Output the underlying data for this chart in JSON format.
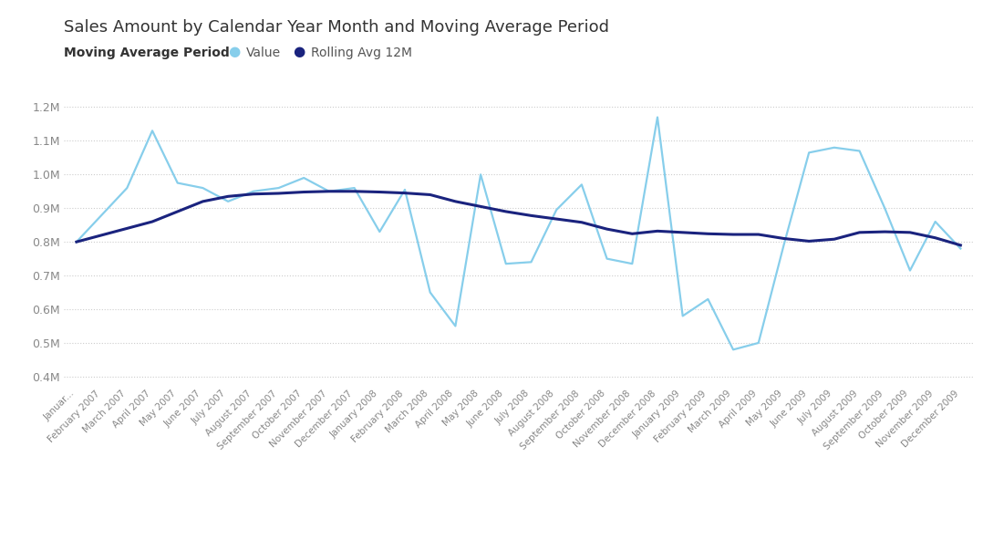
{
  "title": "Sales Amount by Calendar Year Month and Moving Average Period",
  "legend_prefix": "Moving Average Period",
  "series_value_label": "Value",
  "series_avg_label": "Rolling Avg 12M",
  "value_color": "#87CEEB",
  "avg_color": "#1a237e",
  "background_color": "#ffffff",
  "ylim": [
    0.375,
    1.265
  ],
  "yticks": [
    0.4,
    0.5,
    0.6,
    0.7,
    0.8,
    0.9,
    1.0,
    1.1,
    1.2
  ],
  "ytick_labels": [
    "0.4M",
    "0.5M",
    "0.6M",
    "0.7M",
    "0.8M",
    "0.9M",
    "1.0M",
    "1.1M",
    "1.2M"
  ],
  "months": [
    "Januar...",
    "February 2007",
    "March 2007",
    "April 2007",
    "May 2007",
    "June 2007",
    "July 2007",
    "August 2007",
    "September 2007",
    "October 2007",
    "November 2007",
    "December 2007",
    "January 2008",
    "February 2008",
    "March 2008",
    "April 2008",
    "May 2008",
    "June 2008",
    "July 2008",
    "August 2008",
    "September 2008",
    "October 2008",
    "November 2008",
    "December 2008",
    "January 2009",
    "February 2009",
    "March 2009",
    "April 2009",
    "May 2009",
    "June 2009",
    "July 2009",
    "August 2009",
    "September 2009",
    "October 2009",
    "November 2009",
    "December 2009"
  ],
  "values": [
    0.8,
    0.88,
    0.96,
    1.13,
    0.975,
    0.96,
    0.92,
    0.95,
    0.96,
    0.99,
    0.95,
    0.96,
    0.83,
    0.955,
    0.65,
    0.55,
    1.0,
    0.735,
    0.74,
    0.895,
    0.97,
    0.75,
    0.735,
    1.17,
    0.58,
    0.63,
    0.48,
    0.5,
    0.79,
    1.065,
    1.08,
    1.07,
    0.9,
    0.715,
    0.86,
    0.78
  ],
  "rolling_avg": [
    0.8,
    0.82,
    0.84,
    0.86,
    0.89,
    0.92,
    0.935,
    0.942,
    0.944,
    0.948,
    0.95,
    0.95,
    0.948,
    0.945,
    0.94,
    0.92,
    0.905,
    0.89,
    0.878,
    0.868,
    0.858,
    0.838,
    0.824,
    0.832,
    0.828,
    0.824,
    0.822,
    0.822,
    0.81,
    0.802,
    0.808,
    0.828,
    0.83,
    0.828,
    0.812,
    0.79
  ],
  "grid_color": "#cccccc",
  "tick_color": "#888888",
  "title_fontsize": 13,
  "label_fontsize": 9,
  "legend_fontsize": 10,
  "title_color": "#333333",
  "legend_text_color": "#555555"
}
